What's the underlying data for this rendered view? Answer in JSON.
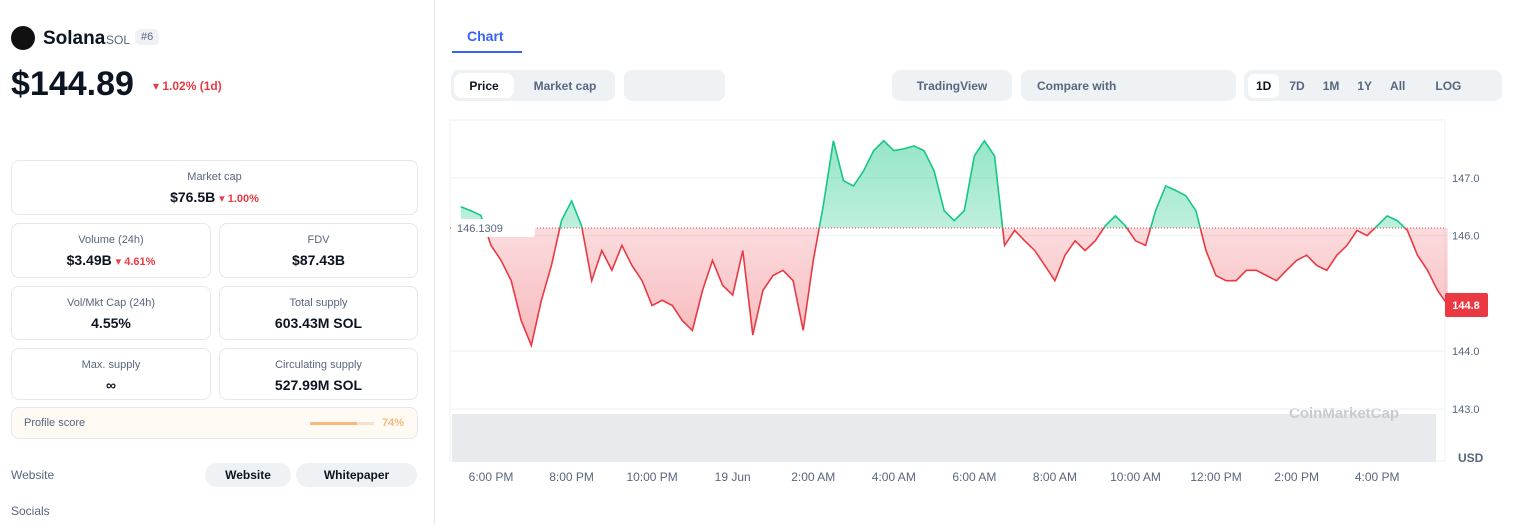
{
  "coin": {
    "name": "Solana",
    "symbol": "SOL",
    "rank": "#6",
    "price": "$144.89",
    "change": "1.02% (1d)"
  },
  "stats": {
    "market_cap": {
      "label": "Market cap",
      "value": "$76.5B",
      "change": "1.00%"
    },
    "volume": {
      "label": "Volume (24h)",
      "value": "$3.49B",
      "change": "4.61%"
    },
    "fdv": {
      "label": "FDV",
      "value": "$87.43B"
    },
    "vol_mkt_cap": {
      "label": "Vol/Mkt Cap (24h)",
      "value": "4.55%"
    },
    "total_supply": {
      "label": "Total supply",
      "value": "603.43M SOL"
    },
    "max_supply": {
      "label": "Max. supply",
      "value": "∞"
    },
    "circulating_supply": {
      "label": "Circulating supply",
      "value": "527.99M SOL"
    }
  },
  "profile_score": {
    "label": "Profile score",
    "value": 74,
    "value_label": "74%"
  },
  "links": {
    "website_label": "Website",
    "website": "Website",
    "whitepaper": "Whitepaper",
    "socials_label": "Socials"
  },
  "toolbar": {
    "tab": "Chart",
    "price": "Price",
    "market_cap": "Market cap",
    "tradingview": "TradingView",
    "compare": "Compare with",
    "ranges": [
      "1D",
      "7D",
      "1M",
      "1Y",
      "All",
      "LOG"
    ]
  },
  "chart_data": {
    "type": "line",
    "watermark": "CoinMarketCap",
    "currency": "USD",
    "up_color": "#16c784",
    "down_color": "#ea3943",
    "reference_price": 146.1309,
    "last_price": 144.8,
    "ylim": [
      142.1,
      148.0
    ],
    "yticks": [
      {
        "value": 143,
        "label": "143.0"
      },
      {
        "value": 144,
        "label": "144.0"
      },
      {
        "value": 146,
        "label": "146.0"
      },
      {
        "value": 147,
        "label": "147.0"
      }
    ],
    "categories": [
      null,
      null,
      null,
      "6:00 PM",
      null,
      null,
      null,
      null,
      null,
      null,
      null,
      "8:00 PM",
      null,
      null,
      null,
      null,
      null,
      null,
      null,
      "10:00 PM",
      null,
      null,
      null,
      null,
      null,
      null,
      null,
      "19 Jun",
      null,
      null,
      null,
      null,
      null,
      null,
      null,
      "2:00 AM",
      null,
      null,
      null,
      null,
      null,
      null,
      null,
      "4:00 AM",
      null,
      null,
      null,
      null,
      null,
      null,
      null,
      "6:00 AM",
      null,
      null,
      null,
      null,
      null,
      null,
      null,
      "8:00 AM",
      null,
      null,
      null,
      null,
      null,
      null,
      null,
      "10:00 AM",
      null,
      null,
      null,
      null,
      null,
      null,
      null,
      "12:00 PM",
      null,
      null,
      null,
      null,
      null,
      null,
      null,
      "2:00 PM",
      null,
      null,
      null,
      null,
      null,
      null,
      null,
      "4:00 PM",
      null,
      null,
      null,
      null,
      null,
      null,
      null
    ],
    "values": [
      146.5,
      146.43,
      146.35,
      145.83,
      145.57,
      145.22,
      144.53,
      144.1,
      144.88,
      145.48,
      146.26,
      146.6,
      146.17,
      145.22,
      145.74,
      145.4,
      145.83,
      145.48,
      145.22,
      144.79,
      144.88,
      144.79,
      144.53,
      144.36,
      145.05,
      145.57,
      145.14,
      144.97,
      145.74,
      144.28,
      145.05,
      145.31,
      145.4,
      145.22,
      144.36,
      145.57,
      146.52,
      147.64,
      146.95,
      146.86,
      147.12,
      147.47,
      147.64,
      147.47,
      147.5,
      147.55,
      147.47,
      147.12,
      146.43,
      146.26,
      146.43,
      147.38,
      147.64,
      147.38,
      145.83,
      146.09,
      145.91,
      145.74,
      145.48,
      145.22,
      145.66,
      145.91,
      145.74,
      145.91,
      146.17,
      146.34,
      146.17,
      145.91,
      145.83,
      146.43,
      146.86,
      146.78,
      146.69,
      146.43,
      145.74,
      145.31,
      145.22,
      145.22,
      145.4,
      145.4,
      145.31,
      145.22,
      145.4,
      145.57,
      145.66,
      145.48,
      145.4,
      145.66,
      145.83,
      146.09,
      146.0,
      146.17,
      146.34,
      146.26,
      146.09,
      145.66,
      145.4,
      145.05,
      144.8
    ]
  }
}
